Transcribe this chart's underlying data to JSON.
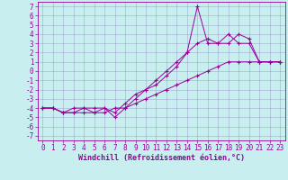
{
  "xlabel": "Windchill (Refroidissement éolien,°C)",
  "background_color": "#c8eef0",
  "line_color": "#990099",
  "grid_color": "#9090c0",
  "xlim": [
    -0.5,
    23.5
  ],
  "ylim": [
    -7.5,
    7.5
  ],
  "xticks": [
    0,
    1,
    2,
    3,
    4,
    5,
    6,
    7,
    8,
    9,
    10,
    11,
    12,
    13,
    14,
    15,
    16,
    17,
    18,
    19,
    20,
    21,
    22,
    23
  ],
  "yticks": [
    -7,
    -6,
    -5,
    -4,
    -3,
    -2,
    -1,
    0,
    1,
    2,
    3,
    4,
    5,
    6,
    7
  ],
  "series1_x": [
    0,
    1,
    2,
    3,
    4,
    5,
    6,
    7,
    8,
    9,
    10,
    11,
    12,
    13,
    14,
    15,
    16,
    17,
    18,
    19,
    20,
    21,
    22,
    23
  ],
  "series1_y": [
    -4,
    -4,
    -4.5,
    -4.5,
    -4.5,
    -4.5,
    -4.5,
    -4,
    -4,
    -3.5,
    -3,
    -2.5,
    -2,
    -1.5,
    -1,
    -0.5,
    0,
    0.5,
    1,
    1,
    1,
    1,
    1,
    1
  ],
  "series2_x": [
    0,
    1,
    2,
    3,
    4,
    5,
    6,
    7,
    8,
    9,
    10,
    11,
    12,
    13,
    14,
    15,
    16,
    17,
    18,
    19,
    20,
    21,
    22,
    23
  ],
  "series2_y": [
    -4,
    -4,
    -4.5,
    -4.5,
    -4,
    -4.5,
    -4,
    -5,
    -4,
    -3,
    -2,
    -1,
    0,
    1,
    2,
    7,
    3,
    3,
    4,
    3,
    3,
    1,
    1,
    1
  ],
  "series3_x": [
    0,
    1,
    2,
    3,
    4,
    5,
    6,
    7,
    8,
    9,
    10,
    11,
    12,
    13,
    14,
    15,
    16,
    17,
    18,
    19,
    20,
    21,
    22,
    23
  ],
  "series3_y": [
    -4,
    -4,
    -4.5,
    -4,
    -4,
    -4,
    -4,
    -4.5,
    -3.5,
    -2.5,
    -2,
    -1.5,
    -0.5,
    0.5,
    2,
    3,
    3.5,
    3,
    3,
    4,
    3.5,
    1,
    1,
    1
  ],
  "tick_fontsize": 5.5,
  "xlabel_fontsize": 6.0,
  "figsize": [
    3.2,
    2.0
  ],
  "dpi": 100
}
